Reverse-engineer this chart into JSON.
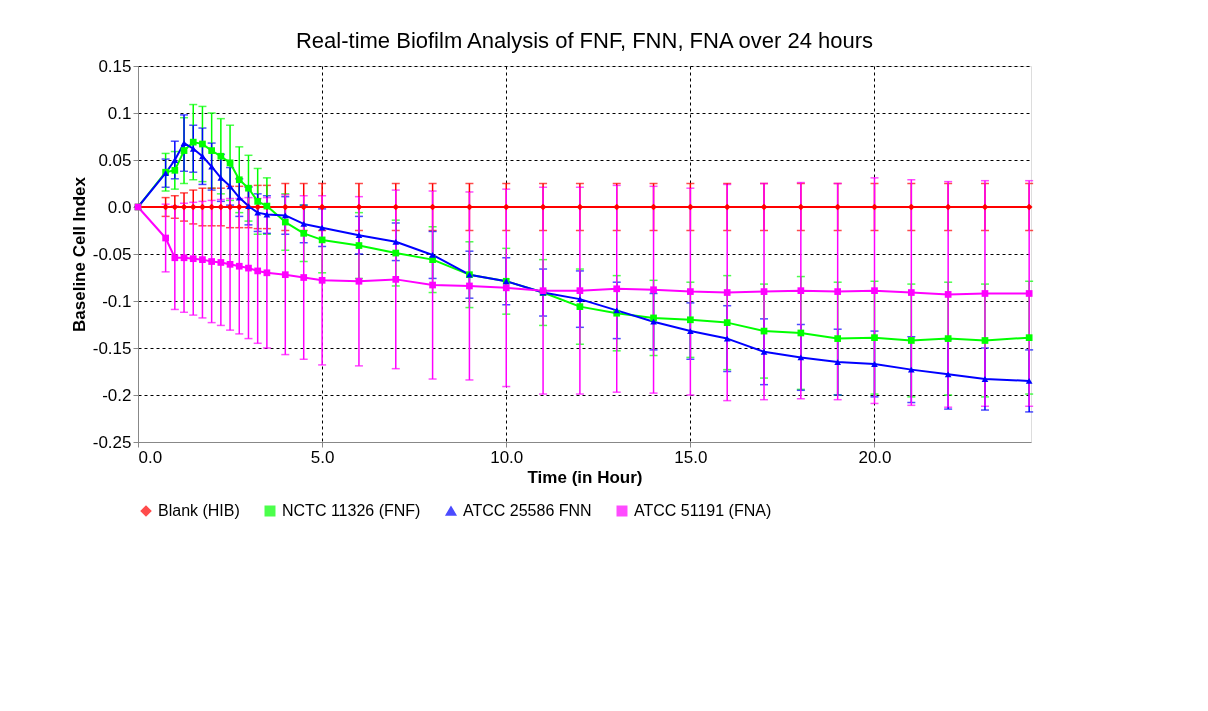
{
  "chart_data": {
    "type": "line",
    "title": "Real-time Biofilm Analysis of FNF, FNN, FNA over 24 hours",
    "xlabel": "Time (in Hour)",
    "ylabel": "Baseline Cell Index",
    "x": [
      0,
      0.75,
      1,
      1.25,
      1.5,
      1.75,
      2,
      2.25,
      2.5,
      2.75,
      3,
      3.25,
      3.5,
      4,
      4.5,
      5,
      6,
      7,
      8,
      9,
      10,
      11,
      12,
      13,
      14,
      15,
      16,
      17,
      18,
      19,
      20,
      21,
      22,
      23,
      24.2
    ],
    "xlim": [
      0,
      24.25
    ],
    "xticks": [
      {
        "value": 0,
        "label": "0.0"
      },
      {
        "value": 5,
        "label": "5.0"
      },
      {
        "value": 10,
        "label": "10.0"
      },
      {
        "value": 15,
        "label": "15.0"
      },
      {
        "value": 20,
        "label": "20.0"
      }
    ],
    "ylim": [
      -0.25,
      0.15
    ],
    "yticks": [
      -0.25,
      -0.2,
      -0.15,
      -0.1,
      -0.05,
      {
        "value": 0,
        "label": "0.0"
      },
      0.05,
      0.1,
      0.15
    ],
    "grid": true,
    "legend": "bottom",
    "line_style": "solid",
    "series": [
      {
        "name": "Blank (HIB)",
        "color": "#ff0000",
        "marker": "diamond",
        "values": [
          0,
          0,
          0,
          0,
          0,
          0,
          0,
          0,
          0,
          0,
          0,
          0,
          0,
          0,
          0,
          0,
          0,
          0,
          0,
          0,
          0,
          0,
          0,
          0,
          0,
          0,
          0,
          0,
          0,
          0,
          0,
          0,
          0,
          0,
          0
        ],
        "errors": [
          0,
          0.01,
          0.012,
          0.015,
          0.018,
          0.02,
          0.02,
          0.02,
          0.022,
          0.022,
          0.022,
          0.023,
          0.023,
          0.025,
          0.025,
          0.025,
          0.025,
          0.025,
          0.025,
          0.025,
          0.025,
          0.025,
          0.025,
          0.025,
          0.025,
          0.025,
          0.025,
          0.025,
          0.025,
          0.025,
          0.025,
          0.025,
          0.025,
          0.025,
          0.025
        ]
      },
      {
        "name": "NCTC 11326 (FNF)",
        "color": "#00ff00",
        "marker": "square",
        "values": [
          0,
          0.037,
          0.039,
          0.06,
          0.069,
          0.067,
          0.06,
          0.054,
          0.047,
          0.029,
          0.02,
          0.006,
          0.001,
          -0.016,
          -0.028,
          -0.035,
          -0.041,
          -0.049,
          -0.056,
          -0.072,
          -0.079,
          -0.091,
          -0.106,
          -0.113,
          -0.118,
          -0.12,
          -0.123,
          -0.132,
          -0.134,
          -0.14,
          -0.139,
          -0.142,
          -0.14,
          -0.142,
          -0.139
        ],
        "errors": [
          0,
          0.02,
          0.02,
          0.035,
          0.04,
          0.04,
          0.04,
          0.04,
          0.04,
          0.035,
          0.035,
          0.035,
          0.03,
          0.03,
          0.03,
          0.035,
          0.035,
          0.035,
          0.035,
          0.035,
          0.035,
          0.035,
          0.04,
          0.04,
          0.04,
          0.04,
          0.05,
          0.05,
          0.06,
          0.06,
          0.06,
          0.06,
          0.06,
          0.06,
          0.06
        ]
      },
      {
        "name": "ATCC 25586 FNN",
        "color": "#0000ff",
        "marker": "triangle",
        "values": [
          0,
          0.036,
          0.05,
          0.068,
          0.062,
          0.054,
          0.043,
          0.031,
          0.022,
          0.01,
          0.001,
          -0.006,
          -0.008,
          -0.009,
          -0.018,
          -0.022,
          -0.03,
          -0.037,
          -0.051,
          -0.072,
          -0.079,
          -0.091,
          -0.098,
          -0.11,
          -0.122,
          -0.132,
          -0.14,
          -0.154,
          -0.16,
          -0.165,
          -0.167,
          -0.173,
          -0.178,
          -0.183,
          -0.185
        ],
        "errors": [
          0,
          0.015,
          0.02,
          0.03,
          0.025,
          0.03,
          0.025,
          0.025,
          0.02,
          0.02,
          0.02,
          0.02,
          0.02,
          0.02,
          0.02,
          0.02,
          0.02,
          0.02,
          0.025,
          0.025,
          0.025,
          0.025,
          0.03,
          0.03,
          0.03,
          0.03,
          0.035,
          0.035,
          0.035,
          0.035,
          0.035,
          0.035,
          0.037,
          0.033,
          0.033
        ]
      },
      {
        "name": "ATCC 51191 (FNA)",
        "color": "#ff00ff",
        "marker": "square",
        "values": [
          0,
          -0.033,
          -0.054,
          -0.054,
          -0.055,
          -0.056,
          -0.058,
          -0.059,
          -0.061,
          -0.063,
          -0.065,
          -0.068,
          -0.07,
          -0.072,
          -0.075,
          -0.078,
          -0.079,
          -0.077,
          -0.083,
          -0.084,
          -0.086,
          -0.089,
          -0.089,
          -0.087,
          -0.088,
          -0.09,
          -0.091,
          -0.09,
          -0.089,
          -0.09,
          -0.089,
          -0.091,
          -0.093,
          -0.092,
          -0.092
        ],
        "errors": [
          0,
          0.036,
          0.055,
          0.058,
          0.06,
          0.062,
          0.065,
          0.067,
          0.07,
          0.072,
          0.075,
          0.077,
          0.08,
          0.085,
          0.087,
          0.09,
          0.09,
          0.095,
          0.1,
          0.1,
          0.105,
          0.11,
          0.11,
          0.11,
          0.11,
          0.11,
          0.115,
          0.115,
          0.115,
          0.115,
          0.12,
          0.12,
          0.12,
          0.12,
          0.12
        ]
      }
    ]
  }
}
